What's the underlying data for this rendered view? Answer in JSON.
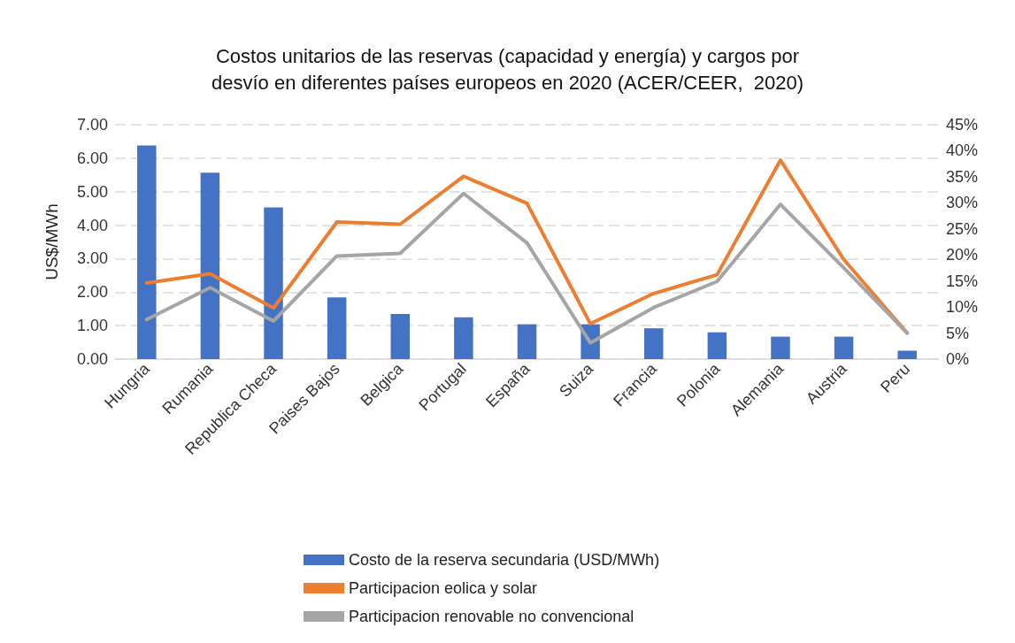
{
  "chart_data": {
    "type": "bar",
    "title": "Costos unitarios de las reservas (capacidad y energía) y cargos por\ndesvío en diferentes países europeos en 2020 (ACER/CEER,  2020)",
    "ylabel": "US$/MWh",
    "categories": [
      "Hungria",
      "Rumania",
      "Republica Checa",
      "Paises Bajos",
      "Belgica",
      "Portugal",
      "España",
      "Suiza",
      "Francia",
      "Polonia",
      "Alemania",
      "Austria",
      "Peru"
    ],
    "series": [
      {
        "name": "Costo de la reserva secundaria (USD/MWh)",
        "color": "#4472c4",
        "values": [
          6.38,
          5.57,
          4.53,
          1.84,
          1.35,
          1.25,
          1.04,
          1.04,
          0.92,
          0.8,
          0.67,
          0.67,
          0.25
        ]
      },
      {
        "name": "Participacion eolica y solar",
        "type": "line",
        "axis": "y2",
        "color": "#ed7d31",
        "values": [
          14.6,
          16.4,
          9.8,
          26.3,
          25.9,
          35.1,
          29.9,
          6.8,
          12.6,
          16.2,
          38.2,
          19.1,
          5.0
        ]
      },
      {
        "name": "Participacion renovable no convencional",
        "type": "line",
        "axis": "y2",
        "color": "#a5a5a5",
        "values": [
          7.6,
          13.7,
          7.3,
          19.8,
          20.3,
          31.8,
          22.3,
          3.1,
          9.9,
          14.9,
          29.7,
          17.5,
          5.0
        ]
      }
    ],
    "ylim": [
      0,
      7
    ],
    "yticks": [
      {
        "value": 0,
        "label": "0.00"
      },
      {
        "value": 1,
        "label": "1.00"
      },
      {
        "value": 2,
        "label": "2.00"
      },
      {
        "value": 3,
        "label": "3.00"
      },
      {
        "value": 4,
        "label": "4.00"
      },
      {
        "value": 5,
        "label": "5.00"
      },
      {
        "value": 6,
        "label": "6.00"
      },
      {
        "value": 7,
        "label": "7.00"
      }
    ],
    "y2lim": [
      0,
      45
    ],
    "y2ticks": [
      {
        "value": 0,
        "label": "0%"
      },
      {
        "value": 5,
        "label": "5%"
      },
      {
        "value": 10,
        "label": "10%"
      },
      {
        "value": 15,
        "label": "15%"
      },
      {
        "value": 20,
        "label": "20%"
      },
      {
        "value": 25,
        "label": "25%"
      },
      {
        "value": 30,
        "label": "30%"
      },
      {
        "value": 35,
        "label": "35%"
      },
      {
        "value": 40,
        "label": "40%"
      },
      {
        "value": 45,
        "label": "45%"
      }
    ],
    "grid": "y",
    "legend": "bottom",
    "marker": "none",
    "line_style": "solid"
  }
}
